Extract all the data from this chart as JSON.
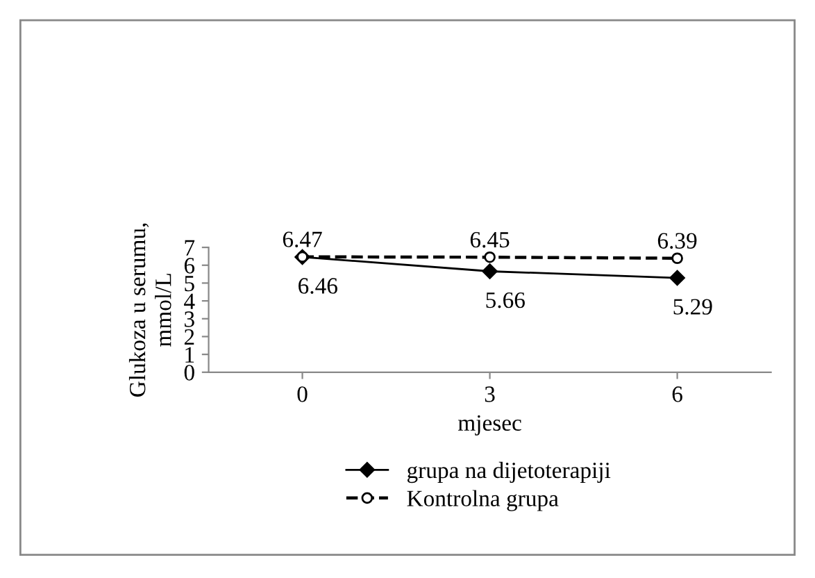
{
  "chart_data": {
    "type": "line",
    "xlabel": "mjesec",
    "ylabel": "Glukoza u serumu,\nmmol/L",
    "categories": [
      "0",
      "3",
      "6"
    ],
    "series": [
      {
        "name": "grupa na dijetoterapiji",
        "color": "#000000",
        "values": [
          6.46,
          5.66,
          5.29
        ],
        "marker": "diamond",
        "line_style": "solid"
      },
      {
        "name": "Kontrolna grupa",
        "color": "#000000",
        "values": [
          6.47,
          6.45,
          6.39
        ],
        "marker": "circle",
        "line_style": "dashed"
      }
    ],
    "ylim": [
      0,
      7
    ],
    "yticks": [
      0,
      1,
      2,
      3,
      4,
      5,
      6,
      7
    ],
    "grid": false,
    "legend": "bottom",
    "data_labels": true
  }
}
